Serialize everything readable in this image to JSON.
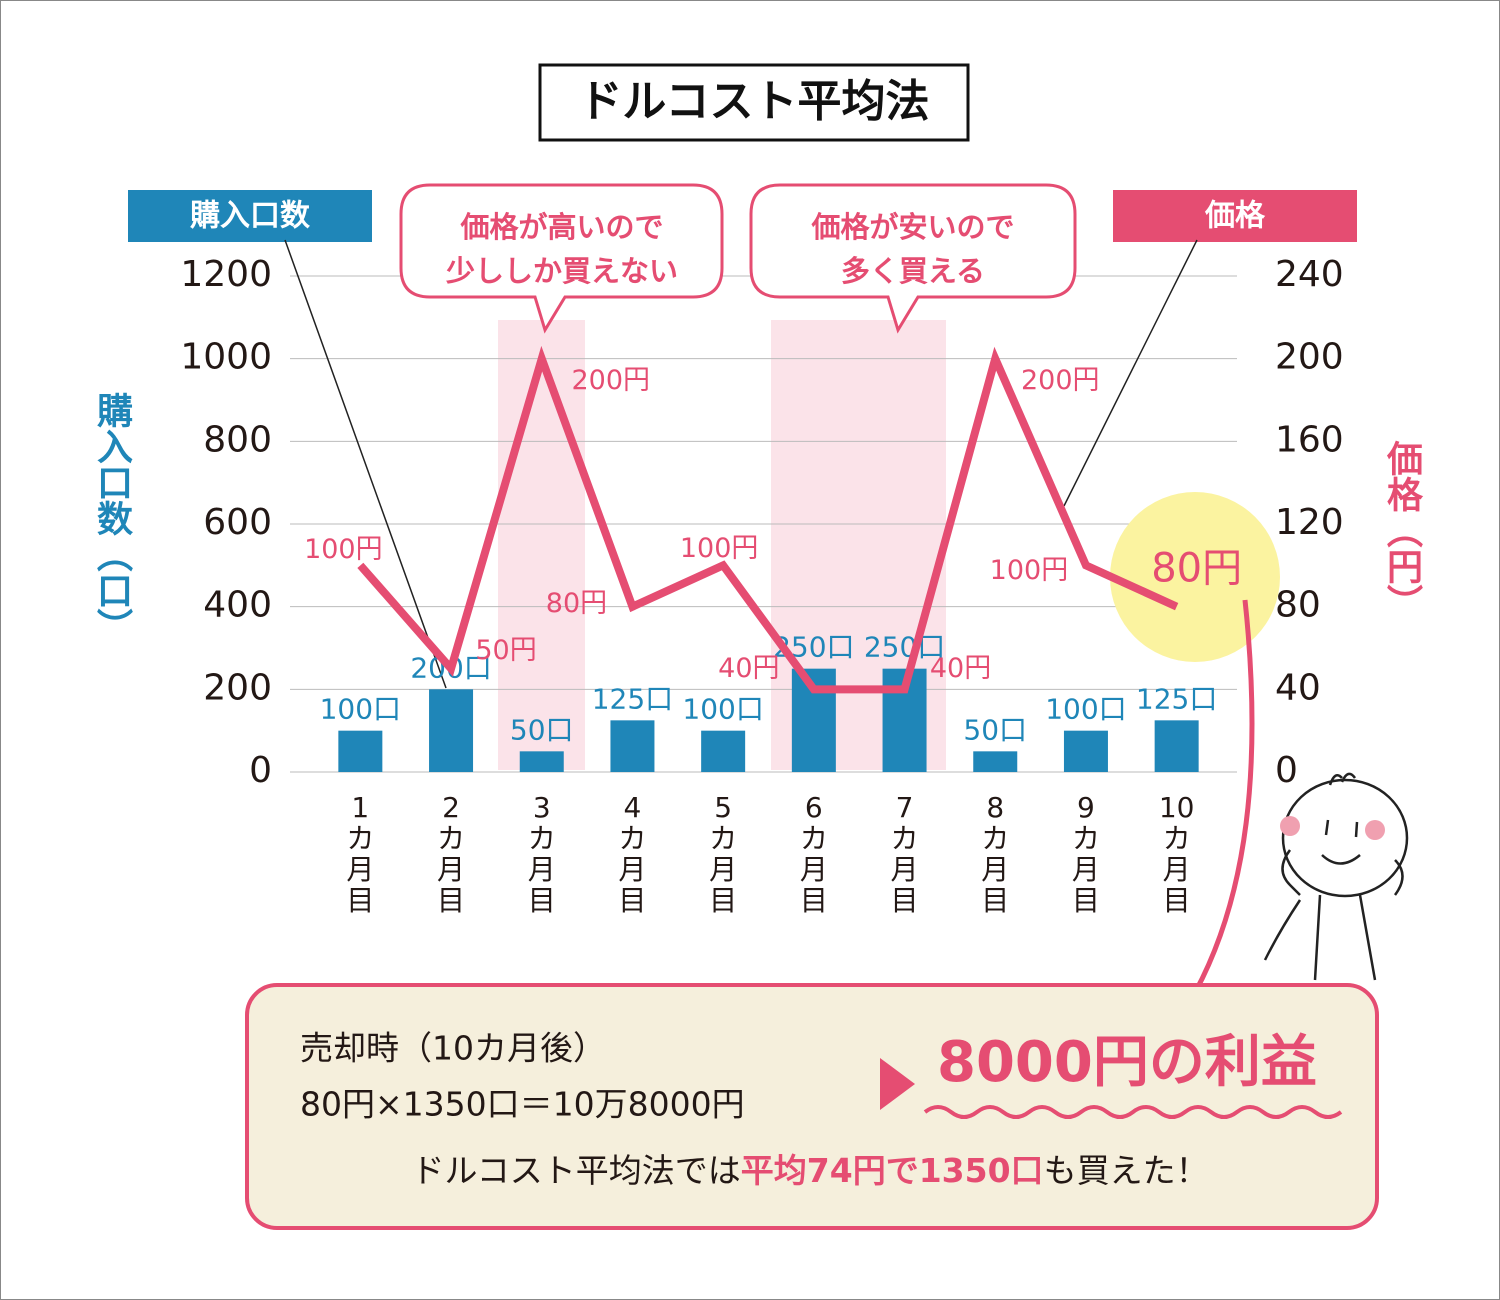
{
  "chart_data": {
    "type": "combo",
    "title": "ドルコスト平均法",
    "categories": [
      "1カ月目",
      "2カ月目",
      "3カ月目",
      "4カ月目",
      "5カ月目",
      "6カ月目",
      "7カ月目",
      "8カ月目",
      "9カ月目",
      "10カ月目"
    ],
    "series": [
      {
        "name": "購入口数",
        "type": "bar",
        "color": "#1f86b8",
        "values": [
          100,
          200,
          50,
          125,
          100,
          250,
          250,
          50,
          100,
          125
        ],
        "value_labels": [
          "100口",
          "200口",
          "50口",
          "125口",
          "100口",
          "250口",
          "250口",
          "50口",
          "100口",
          "125口"
        ]
      },
      {
        "name": "価格",
        "type": "line",
        "axis": "y2",
        "color": "#e54d72",
        "values": [
          100,
          50,
          200,
          80,
          100,
          40,
          40,
          200,
          100,
          80
        ],
        "value_labels": [
          "100円",
          "50円",
          "200円",
          "80円",
          "100円",
          "40円",
          "40円",
          "200円",
          "100円",
          "80円"
        ]
      }
    ],
    "ylabel": "購入口数（口）",
    "y2label": "価格（円）",
    "ylim": [
      0,
      1200
    ],
    "yticks": [
      0,
      200,
      400,
      600,
      800,
      1000,
      1200
    ],
    "y2lim": [
      0,
      240
    ],
    "y2ticks": [
      0,
      40,
      80,
      120,
      160,
      200,
      240
    ],
    "grid": true,
    "annotations": [
      {
        "lines": [
          "価格が高いので",
          "少ししか買えない"
        ]
      },
      {
        "lines": [
          "価格が安いので",
          "多く買える"
        ]
      }
    ],
    "summary": {
      "line1": "売却時（10カ月後）",
      "line2": "80円×1350口＝10万8000円",
      "result": "8000円の利益",
      "line3": [
        "ドルコスト平均法では",
        "平均74円で1350口",
        "も買えた！"
      ]
    }
  }
}
